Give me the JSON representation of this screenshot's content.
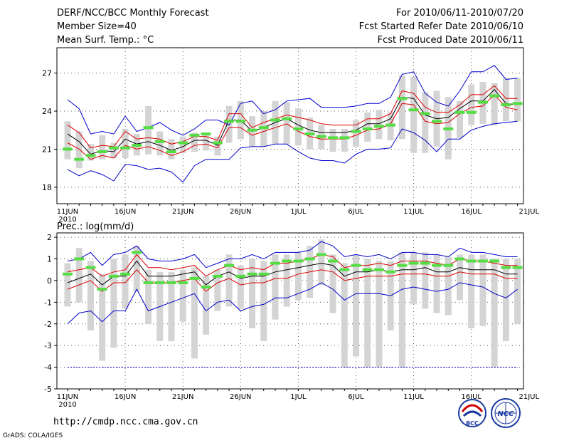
{
  "header": {
    "title": "DERF/NCC/BCC Monthly Forecast",
    "member_size": "Member Size=40",
    "variable": "Mean Surf. Temp.: °C",
    "period": "For 2010/06/11-2010/07/20",
    "started": "Fcst Started Refer Date 2010/06/10",
    "produced": "Fcst Produced Date 2010/06/11"
  },
  "footer": {
    "url": "http://cmdp.ncc.cma.gov.cn",
    "credit": "GrADS: COLA/IGES",
    "logo_bcc": "BCC",
    "logo_ncc": "NCC"
  },
  "colors": {
    "mean": "#000000",
    "spread": "#dd0000",
    "extreme": "#0000cc",
    "box": "#d4d4d4",
    "marker": "#55dd44",
    "grid": "#555555"
  },
  "chart_data": [
    {
      "type": "line",
      "variable": "Mean Surf. Temp.",
      "unit": "°C",
      "xlabels": [
        "11JUN",
        "16JUN",
        "21JUN",
        "26JUN",
        "1JUL",
        "6JUL",
        "11JUL",
        "16JUL",
        "21JUL"
      ],
      "year_label": "2010",
      "yticks": [
        18,
        21,
        24,
        27
      ],
      "ylim": [
        16.7,
        29
      ],
      "days": 40,
      "series": [
        {
          "name": "max",
          "values": [
            24.9,
            24.2,
            22.2,
            22.4,
            22.2,
            23.6,
            22.4,
            22.7,
            23.1,
            22.5,
            22.1,
            22.6,
            23.3,
            23.3,
            22.9,
            24.6,
            24.8,
            23.8,
            24.1,
            24.8,
            24.9,
            25.0,
            24.3,
            24.3,
            24.3,
            24.4,
            24.6,
            24.6,
            25.1,
            26.9,
            27.1,
            25.4,
            24.7,
            24.4,
            25.6,
            27.1,
            27.1,
            27.6,
            26.5,
            26.6
          ]
        },
        {
          "name": "upper",
          "values": [
            22.9,
            22.3,
            21.1,
            21.3,
            21.2,
            22.4,
            21.8,
            21.9,
            21.8,
            21.4,
            21.6,
            22.0,
            22.0,
            21.7,
            23.8,
            23.8,
            22.7,
            23.1,
            23.4,
            23.7,
            23.5,
            23.3,
            23.0,
            22.9,
            22.9,
            22.9,
            23.4,
            23.4,
            23.8,
            25.6,
            25.4,
            24.3,
            23.9,
            23.9,
            24.5,
            25.3,
            25.3,
            26.0,
            25.0,
            25.0
          ]
        },
        {
          "name": "mean",
          "values": [
            22.2,
            21.6,
            20.6,
            20.9,
            20.8,
            21.8,
            21.4,
            21.6,
            21.3,
            20.9,
            21.2,
            21.7,
            21.7,
            21.3,
            23.3,
            23.3,
            22.4,
            22.7,
            23.1,
            23.4,
            22.9,
            22.5,
            22.3,
            22.3,
            22.3,
            22.5,
            23.0,
            23.0,
            23.4,
            25.1,
            25.0,
            23.7,
            23.4,
            23.5,
            24.2,
            24.8,
            24.8,
            25.7,
            24.6,
            24.5
          ]
        },
        {
          "name": "lower",
          "values": [
            21.5,
            21.0,
            20.2,
            20.5,
            20.3,
            21.3,
            21.0,
            21.2,
            20.9,
            20.5,
            20.8,
            21.3,
            21.4,
            21.1,
            22.7,
            22.7,
            22.1,
            22.4,
            22.7,
            23.0,
            22.4,
            22.0,
            21.8,
            21.8,
            21.8,
            22.1,
            22.5,
            22.6,
            23.0,
            24.6,
            24.5,
            23.2,
            23.0,
            23.1,
            23.8,
            24.3,
            24.4,
            25.3,
            24.3,
            24.1
          ]
        },
        {
          "name": "min",
          "values": [
            19.4,
            18.9,
            19.3,
            19.0,
            18.5,
            19.8,
            19.7,
            19.4,
            19.5,
            19.2,
            18.4,
            19.7,
            20.2,
            20.2,
            20.2,
            21.1,
            21.2,
            21.2,
            21.4,
            21.4,
            20.8,
            20.3,
            20.1,
            20.1,
            19.9,
            20.6,
            21.0,
            21.0,
            21.1,
            22.6,
            22.3,
            21.7,
            20.8,
            21.8,
            21.8,
            22.5,
            22.8,
            23.0,
            23.1,
            23.2
          ]
        },
        {
          "name": "marker",
          "values": [
            21.0,
            20.2,
            20.5,
            20.8,
            21.1,
            21.1,
            21.3,
            22.7,
            21.6,
            20.8,
            21.5,
            22.1,
            22.2,
            21.5,
            23.2,
            23.2,
            22.5,
            22.7,
            23.3,
            23.4,
            22.6,
            22.2,
            22.0,
            21.9,
            21.9,
            22.4,
            22.6,
            22.8,
            22.9,
            25.0,
            24.1,
            23.8,
            23.2,
            22.6,
            23.9,
            23.9,
            24.7,
            25.2,
            24.5,
            24.6
          ]
        },
        {
          "name": "box_high",
          "values": [
            23.2,
            22.4,
            21.4,
            22.1,
            21.5,
            22.6,
            22.2,
            24.4,
            22.4,
            21.8,
            22.0,
            22.3,
            22.3,
            22.0,
            24.4,
            24.8,
            23.6,
            24.0,
            24.8,
            24.7,
            24.2,
            23.5,
            22.9,
            22.6,
            22.6,
            23.3,
            23.9,
            24.1,
            23.9,
            26.8,
            26.7,
            25.5,
            25.6,
            25.1,
            24.8,
            26.1,
            26.3,
            26.2,
            26.6,
            26.6
          ]
        },
        {
          "name": "box_low",
          "values": [
            20.2,
            19.5,
            20.1,
            20.2,
            20.3,
            20.3,
            20.5,
            20.6,
            20.5,
            20.2,
            20.7,
            20.8,
            20.9,
            20.5,
            21.5,
            21.8,
            21.2,
            21.2,
            21.4,
            21.4,
            21.3,
            21.0,
            21.0,
            20.8,
            20.8,
            21.2,
            21.6,
            21.8,
            21.7,
            21.8,
            20.7,
            20.7,
            21.2,
            20.2,
            21.9,
            22.9,
            23.0,
            22.9,
            23.2,
            23.2
          ]
        }
      ]
    },
    {
      "type": "line",
      "variable": "Prec.: log(mm/d)",
      "title": "Prec.: log(mm/d)",
      "xlabels": [
        "11JUN",
        "16JUN",
        "21JUN",
        "26JUN",
        "1JUL",
        "6JUL",
        "11JUL",
        "16JUL",
        "21JUL"
      ],
      "year_label": "2010",
      "yticks": [
        2,
        1,
        0,
        -1,
        -2,
        -3,
        -4,
        -5
      ],
      "ylim": [
        -5,
        2.2
      ],
      "days": 40,
      "series": [
        {
          "name": "max",
          "values": [
            0.9,
            1.0,
            1.3,
            0.7,
            1.2,
            1.3,
            1.6,
            1.0,
            0.9,
            0.9,
            1.0,
            1.2,
            0.6,
            0.8,
            1.0,
            1.0,
            1.2,
            1.0,
            1.3,
            1.3,
            1.3,
            1.4,
            1.8,
            1.6,
            1.1,
            1.2,
            1.1,
            1.2,
            1.0,
            1.3,
            1.3,
            1.2,
            1.2,
            1.1,
            1.5,
            1.3,
            1.3,
            1.2,
            1.1,
            1.1
          ]
        },
        {
          "name": "upper",
          "values": [
            0.4,
            0.5,
            0.6,
            0.2,
            0.4,
            0.5,
            1.2,
            0.6,
            0.6,
            0.5,
            0.6,
            0.7,
            0.2,
            0.5,
            0.7,
            0.5,
            0.6,
            0.5,
            0.8,
            0.8,
            0.9,
            1.0,
            1.2,
            1.1,
            0.6,
            0.7,
            0.7,
            0.8,
            0.7,
            0.9,
            0.9,
            0.9,
            0.8,
            0.7,
            1.0,
            0.9,
            0.9,
            0.8,
            0.7,
            0.7
          ]
        },
        {
          "name": "mean",
          "values": [
            -0.1,
            0.1,
            0.3,
            -0.2,
            0.2,
            0.2,
            0.9,
            0.2,
            0.2,
            0.2,
            0.3,
            0.4,
            -0.2,
            0.2,
            0.4,
            0.1,
            0.2,
            0.2,
            0.4,
            0.5,
            0.6,
            0.7,
            0.8,
            0.7,
            0.2,
            0.4,
            0.4,
            0.5,
            0.4,
            0.5,
            0.5,
            0.6,
            0.4,
            0.4,
            0.6,
            0.5,
            0.5,
            0.5,
            0.3,
            0.3
          ]
        },
        {
          "name": "lower",
          "values": [
            -0.4,
            -0.2,
            0.0,
            -0.5,
            -0.1,
            -0.1,
            0.5,
            -0.1,
            -0.1,
            -0.1,
            0.0,
            0.1,
            -0.5,
            -0.1,
            0.1,
            -0.2,
            -0.1,
            -0.1,
            0.1,
            0.1,
            0.3,
            0.4,
            0.5,
            0.4,
            0.0,
            0.1,
            0.2,
            0.2,
            0.2,
            0.3,
            0.3,
            0.3,
            0.2,
            0.2,
            0.4,
            0.3,
            0.3,
            0.3,
            0.1,
            0.1
          ]
        },
        {
          "name": "min",
          "values": [
            -2.0,
            -1.5,
            -1.4,
            -1.9,
            -1.4,
            -1.4,
            -0.4,
            -1.4,
            -1.2,
            -1.0,
            -0.8,
            -0.6,
            -1.4,
            -1.0,
            -0.9,
            -1.4,
            -1.2,
            -1.1,
            -0.8,
            -0.8,
            -0.6,
            -0.4,
            -0.1,
            -0.4,
            -0.9,
            -0.6,
            -0.6,
            -0.6,
            -0.7,
            -0.4,
            -0.3,
            -0.4,
            -0.5,
            -0.4,
            -0.1,
            -0.2,
            -0.3,
            -0.6,
            -0.8,
            -0.4
          ]
        },
        {
          "name": "marker",
          "values": [
            0.3,
            1.0,
            0.6,
            -0.4,
            0.2,
            0.3,
            1.3,
            -0.1,
            -0.1,
            -0.1,
            -0.1,
            0.1,
            -0.3,
            0.2,
            0.7,
            0.2,
            0.3,
            0.3,
            0.8,
            0.9,
            0.9,
            1.0,
            1.2,
            0.9,
            0.5,
            0.7,
            0.5,
            0.5,
            0.4,
            0.7,
            0.8,
            0.8,
            0.7,
            0.7,
            1.0,
            0.9,
            0.9,
            0.9,
            0.6,
            0.6
          ]
        },
        {
          "name": "box_high",
          "values": [
            0.8,
            1.5,
            0.9,
            0.3,
            1.0,
            1.2,
            1.6,
            0.5,
            0.4,
            0.4,
            0.5,
            0.6,
            0.2,
            0.5,
            1.2,
            0.7,
            1.0,
            0.9,
            1.2,
            1.2,
            1.3,
            1.6,
            1.9,
            1.2,
            0.8,
            1.2,
            1.0,
            0.9,
            0.9,
            1.3,
            1.3,
            1.3,
            1.2,
            1.1,
            1.2,
            1.2,
            1.2,
            1.0,
            1.0,
            1.0
          ]
        },
        {
          "name": "box_low",
          "values": [
            -1.2,
            -1.0,
            -2.3,
            -3.7,
            -3.1,
            -1.3,
            -0.5,
            -2.0,
            -2.8,
            -2.8,
            -1.9,
            -3.6,
            -2.5,
            -1.4,
            -1.2,
            -1.3,
            -2.2,
            -2.8,
            -1.8,
            -1.2,
            -0.9,
            -0.8,
            -0.2,
            -1.5,
            -4.0,
            -3.5,
            -4.0,
            -4.0,
            -2.3,
            -4.0,
            -1.1,
            -1.3,
            -1.5,
            -1.6,
            -0.9,
            -2.2,
            -2.1,
            -4.0,
            -2.8,
            -2.0
          ]
        },
        {
          "name": "floor",
          "values": [
            -4.0,
            -4.0,
            -4.0,
            -4.0,
            -4.0,
            -4.0,
            -4.0,
            -4.0,
            -4.0,
            -4.0,
            -4.0,
            -4.0,
            -4.0,
            -4.0,
            -4.0,
            -4.0,
            -4.0,
            -4.0,
            -4.0,
            -4.0,
            -4.0,
            -4.0,
            -4.0,
            -4.0,
            -4.0,
            -4.0,
            -4.0,
            -4.0,
            -4.0,
            -4.0,
            -4.0,
            -4.0,
            -4.0,
            -4.0,
            -4.0,
            -4.0,
            -4.0,
            -4.0,
            -4.0,
            -4.0
          ]
        }
      ]
    }
  ]
}
